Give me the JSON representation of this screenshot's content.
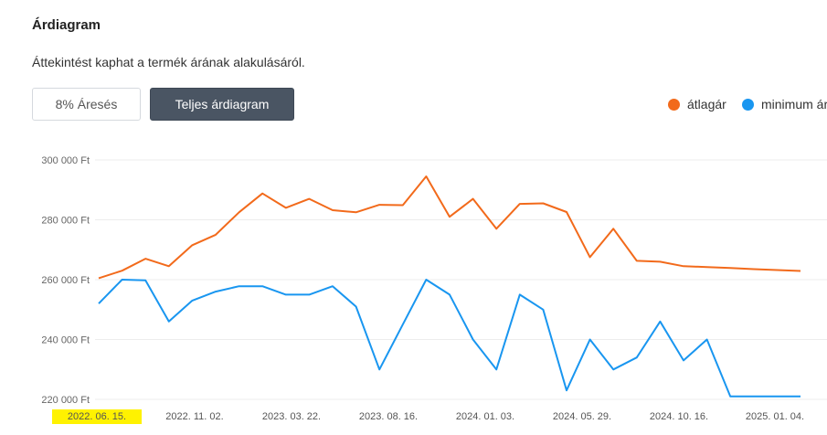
{
  "header": {
    "title": "Árdiagram",
    "subtitle": "Áttekintést kaphat a termék árának alakulásáról."
  },
  "buttons": {
    "drop_label": "8% Áresés",
    "full_label": "Teljes árdiagram"
  },
  "colors": {
    "avg": "#f26a1b",
    "min": "#1996f0",
    "highlight": "#fff200"
  },
  "chart_data": {
    "type": "line",
    "x_tick_labels": [
      "2022. 06. 15.",
      "2022. 11. 02.",
      "2023. 03. 22.",
      "2023. 08. 16.",
      "2024. 01. 03.",
      "2024. 05. 29.",
      "2024. 10. 16.",
      "2025. 01. 04."
    ],
    "highlighted_x_tick": "2022. 06. 15.",
    "y_ticks": [
      220000,
      240000,
      260000,
      280000,
      300000
    ],
    "y_tick_labels": [
      "220 000 Ft",
      "240 000 Ft",
      "260 000 Ft",
      "280 000 Ft",
      "300 000 Ft"
    ],
    "ylim": [
      220000,
      300000
    ],
    "grid": true,
    "legend_position": "top-right",
    "series": [
      {
        "name": "átlagár",
        "color": "#f26a1b",
        "values": [
          260500,
          263000,
          267000,
          264500,
          271500,
          275000,
          282500,
          288800,
          284000,
          287000,
          283200,
          282500,
          285000,
          284900,
          294500,
          281000,
          287000,
          277000,
          285300,
          285500,
          282600,
          267500,
          277000,
          266300,
          266000,
          264500,
          264200,
          263900,
          263500,
          263200,
          262900
        ]
      },
      {
        "name": "minimum ár",
        "color": "#1996f0",
        "values": [
          252000,
          260000,
          259800,
          246000,
          253000,
          256000,
          257800,
          257800,
          255000,
          255000,
          257800,
          251000,
          230000,
          245000,
          260000,
          255000,
          240000,
          230000,
          255000,
          250000,
          223000,
          240000,
          230000,
          234000,
          246000,
          233000,
          240000,
          221000,
          221000,
          221000,
          221000
        ]
      }
    ]
  }
}
